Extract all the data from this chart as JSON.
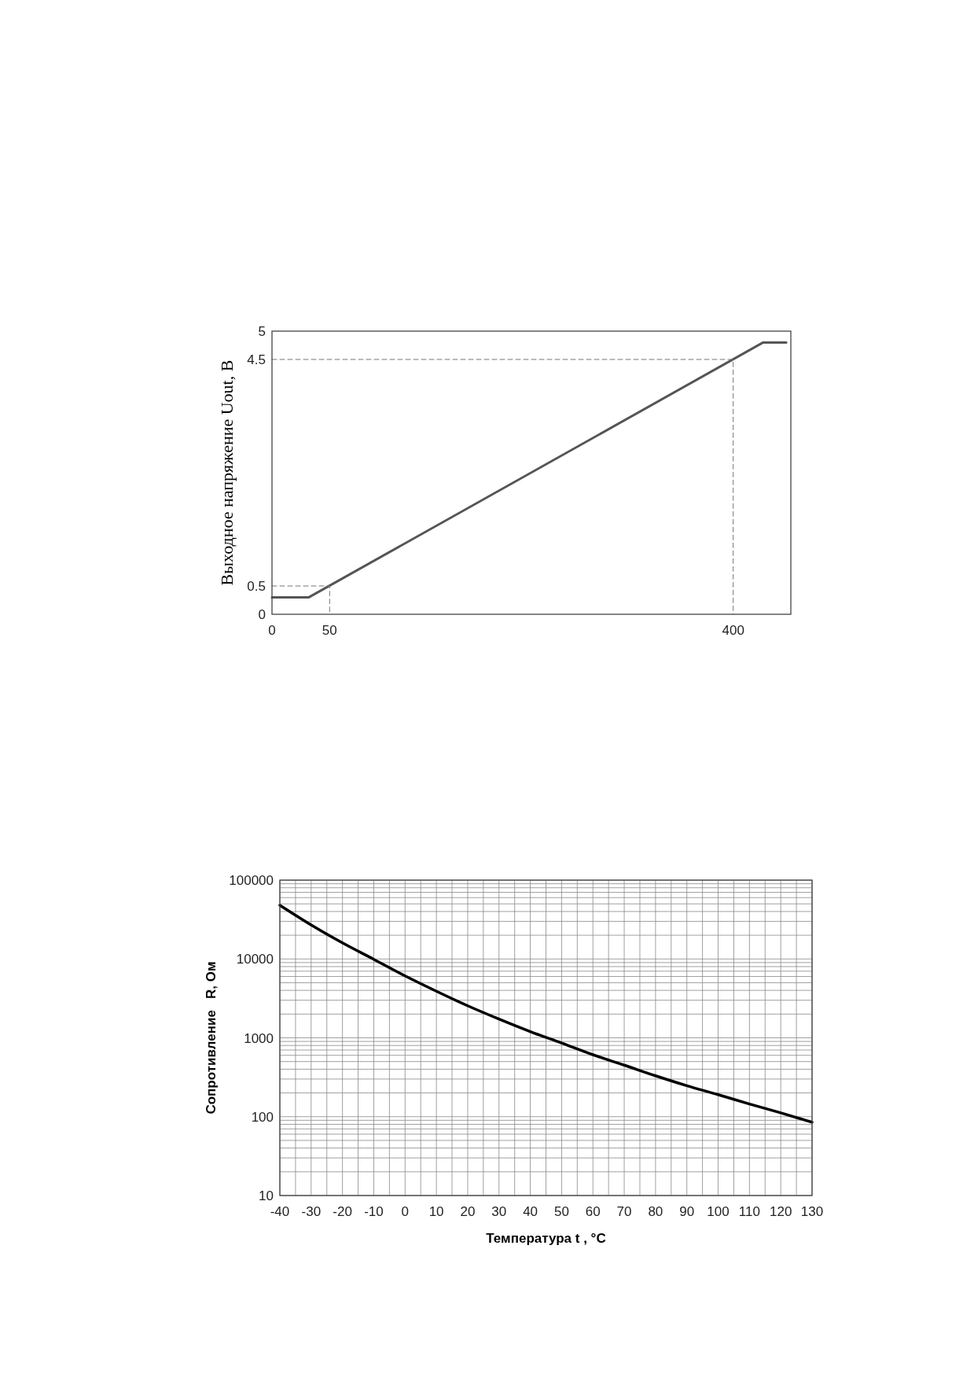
{
  "chart_data": [
    {
      "type": "line",
      "ylabel": "Выходное напряжение Uout, В",
      "xlim": [
        0,
        450
      ],
      "ylim": [
        0,
        5
      ],
      "xticks": [
        0,
        50,
        400
      ],
      "yticks": [
        0,
        0.5,
        4.5,
        5
      ],
      "grid": false,
      "series": [
        {
          "color": "#555555",
          "x": [
            0,
            32,
            426,
            446
          ],
          "values": [
            0.3,
            0.3,
            4.8,
            4.8
          ],
          "line_style": "solid"
        },
        {
          "color": "#777777",
          "x": [
            0,
            50,
            50
          ],
          "values": [
            0.5,
            0.5,
            0
          ],
          "line_style": "dashed"
        },
        {
          "color": "#777777",
          "x": [
            0,
            400,
            400
          ],
          "values": [
            4.5,
            4.5,
            0
          ],
          "line_style": "dashed"
        }
      ]
    },
    {
      "type": "line",
      "xlabel": "Температура t , °C",
      "ylabel": "Сопротивление   R, Ом",
      "xlim": [
        -40,
        130
      ],
      "ylim": [
        10,
        100000
      ],
      "log": "y",
      "grid": true,
      "xticks": [
        -40,
        -30,
        -20,
        -10,
        0,
        10,
        20,
        30,
        40,
        50,
        60,
        70,
        80,
        90,
        100,
        110,
        120,
        130
      ],
      "yticks": [
        10,
        100,
        1000,
        10000,
        100000
      ],
      "series": [
        {
          "color": "#000000",
          "line_style": "solid",
          "x": [
            -40,
            -30,
            -20,
            -10,
            0,
            10,
            20,
            30,
            40,
            50,
            60,
            70,
            80,
            90,
            100,
            110,
            120,
            130
          ],
          "values": [
            48000,
            27000,
            16000,
            9900,
            6100,
            3900,
            2550,
            1730,
            1200,
            860,
            610,
            450,
            330,
            247,
            190,
            145,
            112,
            85
          ]
        }
      ]
    }
  ]
}
